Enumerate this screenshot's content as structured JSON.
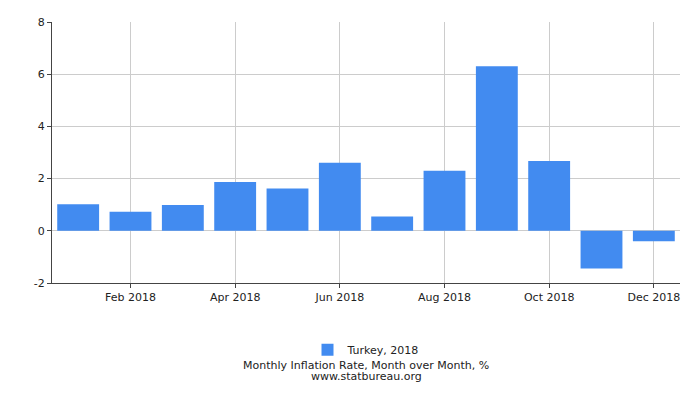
{
  "chart_data": {
    "type": "bar",
    "title": "Monthly Inflation Rate, Month over Month, %",
    "subtitle": "www.statbureau.org",
    "categories": [
      null,
      "Feb 2018",
      null,
      "Apr 2018",
      null,
      "Jun 2018",
      null,
      "Aug 2018",
      null,
      "Oct 2018",
      null,
      "Dec 2018"
    ],
    "series": [
      {
        "name": "Turkey, 2018",
        "color": "#428bf0",
        "values": [
          1.02,
          0.73,
          0.99,
          1.87,
          1.62,
          2.61,
          0.55,
          2.3,
          6.3,
          2.67,
          -1.44,
          -0.4
        ]
      }
    ],
    "ylim": [
      -2,
      8
    ],
    "yticks": [
      -2,
      0,
      2,
      4,
      6,
      8
    ],
    "grid": true,
    "legend": "bottom"
  }
}
